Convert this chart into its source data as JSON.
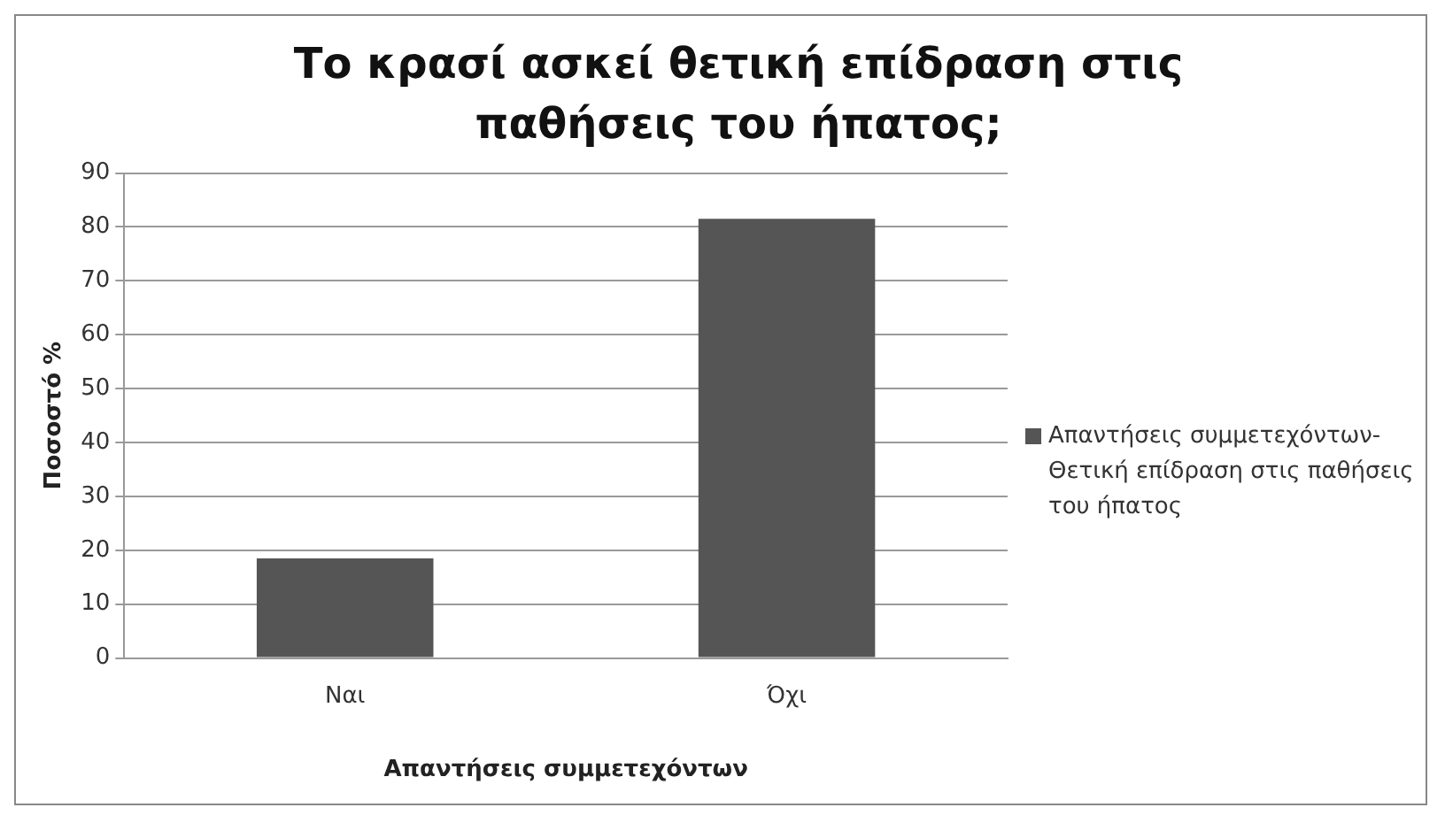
{
  "chart_data": {
    "type": "bar",
    "title": "Το κρασί ασκεί θετική επίδραση στις παθήσεις του ήπατος;",
    "xlabel": "Απαντήσεις συμμετεχόντων",
    "ylabel": "Ποσοστό %",
    "categories": [
      "Ναι",
      "Όχι"
    ],
    "series": [
      {
        "name": "Απαντήσεις συμμετεχόντων-Θετική επίδραση στις παθήσεις του ήπατος",
        "color": "#555555",
        "values": [
          18.5,
          81.5
        ]
      }
    ],
    "ylim": [
      0,
      90
    ],
    "yticks": [
      0,
      10,
      20,
      30,
      40,
      50,
      60,
      70,
      80,
      90
    ],
    "grid": "y",
    "legend": "right"
  }
}
